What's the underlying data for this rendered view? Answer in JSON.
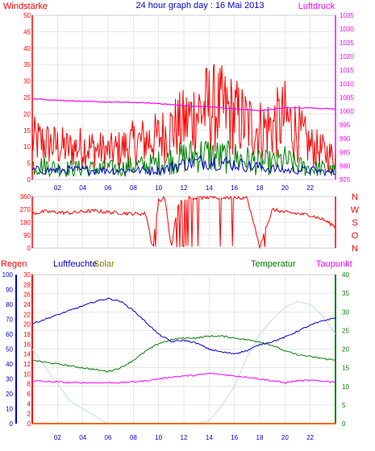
{
  "header": {
    "left_label": "Windstärke",
    "title": "24 hour graph day : 16 Mai 2013",
    "right_label": "Luftdruck"
  },
  "colors": {
    "red": "#ff0000",
    "green": "#008000",
    "blue": "#0000cc",
    "magenta": "#ff00ff",
    "orange": "#ff6600",
    "lightblue": "#ccdcff",
    "grid": "#cfcfcf",
    "olive": "#808000",
    "darkgreen": "#007700"
  },
  "labels": {
    "regen": "Regen",
    "luftfeuchte": "Luftfeuchte",
    "solar": "Solar",
    "temperatur": "Temperatur",
    "taupunkt": "Taupunkt"
  },
  "chart_data": [
    {
      "type": "line",
      "title": "24 hour graph day : 16 Mai 2013",
      "x_ticks": [
        "02",
        "04",
        "06",
        "08",
        "10",
        "12",
        "14",
        "16",
        "18",
        "20",
        "22"
      ],
      "xlim": [
        0,
        24
      ],
      "y_left": {
        "label": "Windstärke",
        "ticks": [
          0,
          5,
          10,
          15,
          20,
          25,
          30,
          35,
          40,
          45,
          50
        ],
        "lim": [
          0,
          50
        ]
      },
      "y_right": {
        "label": "Luftdruck",
        "ticks": [
          975,
          980,
          985,
          990,
          995,
          1000,
          1005,
          1010,
          1015,
          1020,
          1025,
          1030,
          1035
        ],
        "lim": [
          975,
          1035
        ]
      },
      "grid": true,
      "series": [
        {
          "name": "Windstärke",
          "axis": "left",
          "color": "#ff0000",
          "x": [
            0,
            1,
            2,
            3,
            4,
            5,
            6,
            7,
            8,
            9,
            10,
            11,
            12,
            13,
            14,
            15,
            16,
            17,
            18,
            19,
            20,
            21,
            22,
            23,
            24
          ],
          "y": [
            14,
            13,
            12,
            11,
            12,
            11,
            10,
            11,
            13,
            14,
            15,
            18,
            20,
            24,
            26,
            25,
            23,
            20,
            18,
            19,
            22,
            17,
            12,
            10,
            8
          ]
        },
        {
          "axis": "left",
          "color": "#008000",
          "x": [
            0,
            1,
            2,
            3,
            4,
            5,
            6,
            7,
            8,
            9,
            10,
            11,
            12,
            13,
            14,
            15,
            16,
            17,
            18,
            19,
            20,
            21,
            22,
            23,
            24
          ],
          "y": [
            5,
            5,
            4,
            4,
            4,
            4,
            4,
            4,
            5,
            5,
            6,
            7,
            8,
            9,
            9,
            8,
            8,
            7,
            6,
            6,
            7,
            5,
            4,
            4,
            3
          ]
        },
        {
          "axis": "left",
          "color": "#0000cc",
          "x": [
            0,
            2,
            4,
            6,
            8,
            10,
            12,
            14,
            16,
            18,
            20,
            22,
            24
          ],
          "y": [
            3,
            3,
            3,
            3,
            3,
            3,
            5,
            6,
            5,
            4,
            3,
            3,
            2
          ]
        },
        {
          "name": "Luftdruck",
          "axis": "right",
          "color": "#ff00ff",
          "x": [
            0,
            2,
            4,
            6,
            8,
            10,
            12,
            14,
            16,
            18,
            20,
            22,
            24
          ],
          "y": [
            1004.5,
            1004,
            1003.6,
            1003.3,
            1003.2,
            1002.8,
            1002,
            1001.6,
            1000.8,
            1000.2,
            1001.2,
            1001.2,
            1000.8
          ]
        }
      ]
    },
    {
      "type": "line",
      "x_ticks": [
        "02",
        "04",
        "06",
        "08",
        "10",
        "12",
        "14",
        "16",
        "18",
        "20",
        "22"
      ],
      "xlim": [
        0,
        24
      ],
      "y_left": {
        "ticks": [
          0,
          90,
          180,
          270,
          360
        ],
        "lim": [
          0,
          360
        ]
      },
      "y_right_labels": [
        "N",
        "W",
        "S",
        "O",
        "N"
      ],
      "grid": true,
      "series": [
        {
          "axis": "left",
          "color": "#ff0000",
          "x": [
            0,
            1,
            2,
            3,
            4,
            5,
            6,
            7,
            8,
            9,
            9.5,
            10,
            10.5,
            11,
            11.5,
            12,
            13,
            14,
            15,
            16,
            17,
            18,
            19,
            20,
            21,
            22,
            23,
            24
          ],
          "y": [
            240,
            255,
            250,
            245,
            255,
            260,
            250,
            245,
            240,
            240,
            10,
            330,
            350,
            0,
            300,
            350,
            350,
            355,
            350,
            355,
            350,
            10,
            270,
            250,
            240,
            230,
            200,
            150
          ]
        }
      ]
    },
    {
      "type": "line",
      "x_ticks": [
        "02",
        "04",
        "06",
        "08",
        "10",
        "12",
        "14",
        "16",
        "18",
        "20",
        "22"
      ],
      "xlim": [
        0,
        24
      ],
      "y_axes": [
        {
          "label": "Luftfeuchte",
          "ticks": [
            0,
            10,
            20,
            30,
            40,
            50,
            60,
            70,
            80,
            90,
            100
          ],
          "lim": [
            0,
            100
          ]
        },
        {
          "label": "Regen",
          "ticks": [
            0,
            2,
            4,
            6,
            8,
            10,
            12,
            14,
            16,
            18,
            20,
            22,
            24,
            26,
            28,
            30
          ],
          "lim": [
            0,
            30
          ]
        },
        {
          "label": "Temperatur",
          "ticks": [
            0,
            5,
            10,
            15,
            20,
            25,
            30,
            35,
            40
          ],
          "lim": [
            0,
            40
          ]
        }
      ],
      "grid": true,
      "series": [
        {
          "name": "Luftfeuchte",
          "axis": "Luftfeuchte",
          "color": "#0000cc",
          "x": [
            0,
            1,
            2,
            3,
            4,
            5,
            6,
            7,
            8,
            9,
            10,
            11,
            12,
            13,
            14,
            15,
            16,
            17,
            18,
            19,
            20,
            21,
            22,
            23,
            24
          ],
          "y": [
            67,
            70,
            73,
            76,
            79,
            82,
            84,
            82,
            76,
            68,
            60,
            55,
            56,
            54,
            50,
            48,
            47,
            49,
            53,
            55,
            58,
            62,
            66,
            69,
            71
          ]
        },
        {
          "name": "Temperatur",
          "axis": "Temperatur",
          "color": "#008000",
          "x": [
            0,
            1,
            2,
            3,
            4,
            5,
            6,
            7,
            8,
            9,
            10,
            11,
            12,
            13,
            14,
            15,
            16,
            17,
            18,
            19,
            20,
            21,
            22,
            23,
            24
          ],
          "y": [
            17,
            16.5,
            16,
            15.5,
            15,
            14.5,
            14,
            15,
            17,
            19.5,
            21.5,
            22.5,
            23,
            23,
            23.5,
            23.5,
            23,
            22.5,
            22,
            21,
            19.5,
            18.5,
            18,
            17.5,
            17
          ]
        },
        {
          "name": "Taupunkt",
          "axis": "Temperatur",
          "color": "#ff00ff",
          "x": [
            0,
            1,
            2,
            3,
            4,
            5,
            6,
            7,
            8,
            9,
            10,
            11,
            12,
            13,
            14,
            15,
            16,
            17,
            18,
            19,
            20,
            21,
            22,
            23,
            24
          ],
          "y": [
            11.5,
            11.3,
            11.2,
            11,
            11,
            11,
            11,
            11,
            11.2,
            11.5,
            12,
            12.5,
            12.8,
            13,
            13.5,
            13.2,
            12.8,
            12.5,
            12,
            11.5,
            11,
            11.5,
            11.6,
            11.4,
            11.2
          ]
        },
        {
          "name": "Solar",
          "axis": "Luftfeuchte",
          "color": "#ccdcff",
          "x": [
            0,
            3,
            4,
            5,
            5.5,
            6,
            7,
            8,
            9,
            10,
            11,
            12,
            13,
            14,
            15,
            16,
            17,
            18,
            19,
            20,
            21,
            22,
            23,
            24
          ],
          "y": [
            50,
            15,
            10,
            5,
            2,
            0,
            0,
            0,
            0,
            0,
            0,
            0,
            0,
            2,
            12,
            25,
            45,
            60,
            70,
            78,
            82,
            80,
            72,
            60
          ]
        },
        {
          "name": "Regen",
          "axis": "Regen",
          "color": "#ff6600",
          "x": [
            0,
            24
          ],
          "y": [
            0,
            0
          ]
        }
      ]
    }
  ]
}
